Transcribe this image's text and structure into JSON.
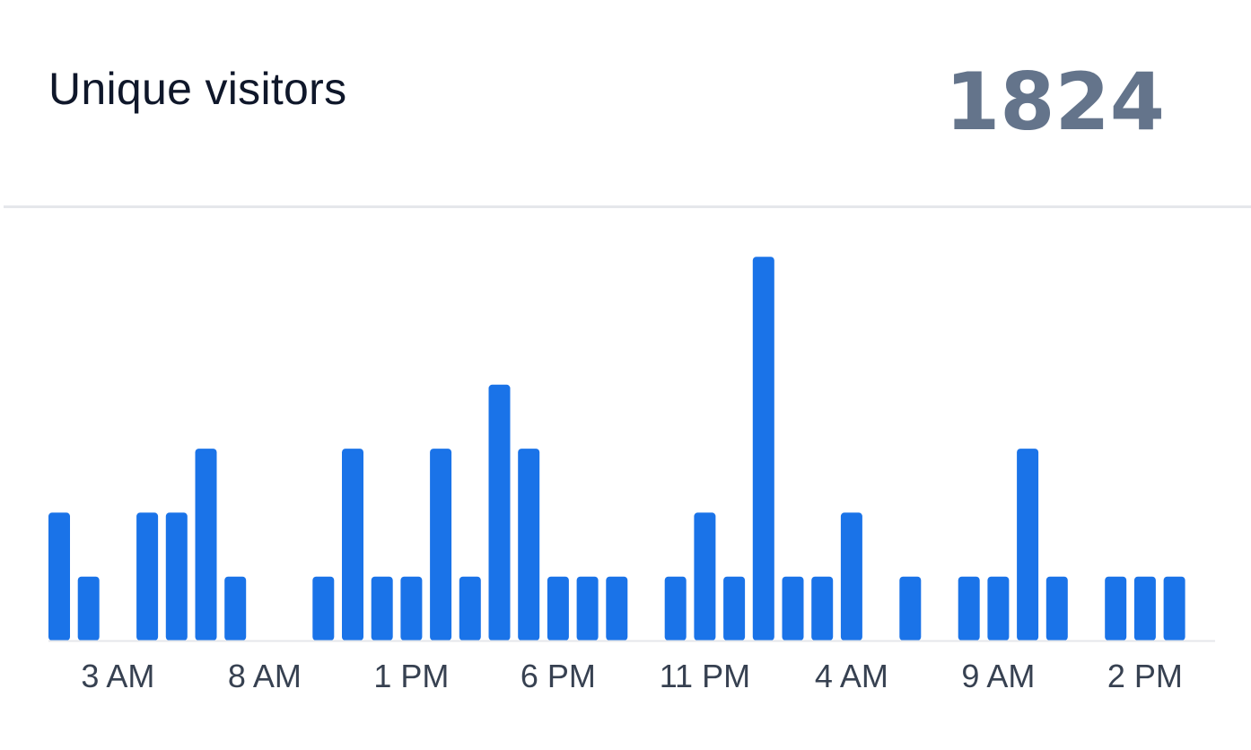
{
  "card": {
    "title": "Unique visitors",
    "total": "1824"
  },
  "colors": {
    "bar": "#1a73e8",
    "axis": "#e5e7eb",
    "title": "#0f172a",
    "total": "#64748b",
    "tick": "#374151"
  },
  "chart_data": {
    "type": "bar",
    "title": "Unique visitors",
    "xlabel": "",
    "ylabel": "",
    "grid": false,
    "ylim": [
      0,
      6
    ],
    "values": [
      2,
      1,
      0,
      2,
      2,
      3,
      1,
      0,
      0,
      1,
      3,
      1,
      1,
      3,
      1,
      4,
      3,
      1,
      1,
      1,
      0,
      1,
      2,
      1,
      6,
      1,
      1,
      2,
      0,
      1,
      0,
      1,
      1,
      3,
      1,
      0,
      1,
      1,
      1
    ],
    "tick_labels": [
      "3 AM",
      "8 AM",
      "1 PM",
      "6 PM",
      "11 PM",
      "4 AM",
      "9 AM",
      "2 PM"
    ],
    "tick_indices": [
      2,
      7,
      12,
      17,
      22,
      27,
      32,
      37
    ]
  }
}
